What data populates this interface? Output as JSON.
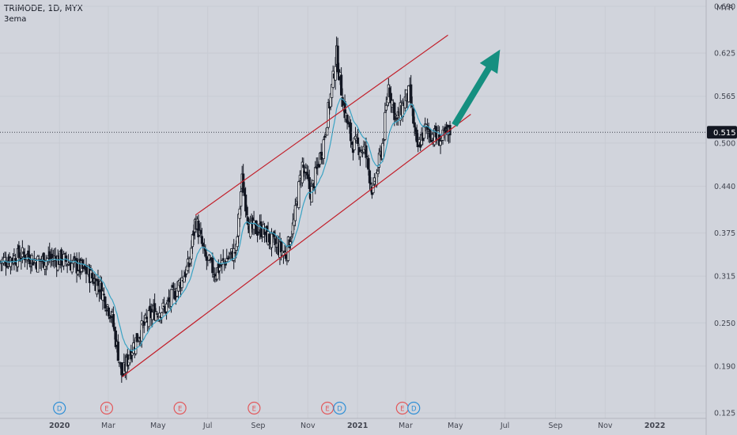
{
  "header": {
    "symbol_line": "TRIMODE, 1D, MYX",
    "indicator": "3ema"
  },
  "currency": "MYR",
  "last_price_label": "0.515",
  "colors": {
    "background": "#d1d4dc",
    "candle": "#131722",
    "ema": "#3aa3c4",
    "channel": "#c21f2a",
    "arrow": "#158f80",
    "dividend": "#2f8fd6",
    "earnings": "#e2585b",
    "price_tag": "#131722"
  },
  "events": [
    {
      "letter": "D",
      "kind": "dividend",
      "date": "2020-01-01"
    },
    {
      "letter": "E",
      "kind": "earnings",
      "date": "2020-02-28"
    },
    {
      "letter": "E",
      "kind": "earnings",
      "date": "2020-05-28"
    },
    {
      "letter": "E",
      "kind": "earnings",
      "date": "2020-08-27"
    },
    {
      "letter": "E",
      "kind": "earnings",
      "date": "2020-11-25"
    },
    {
      "letter": "D",
      "kind": "dividend",
      "date": "2020-12-10"
    },
    {
      "letter": "E",
      "kind": "earnings",
      "date": "2021-02-25"
    },
    {
      "letter": "D",
      "kind": "dividend",
      "date": "2021-03-11"
    }
  ],
  "chart_data": {
    "type": "candlestick",
    "symbol": "TRIMODE",
    "interval": "1D",
    "exchange": "MYX",
    "y_ticks": [
      "0.690",
      "0.625",
      "0.565",
      "0.500",
      "0.440",
      "0.375",
      "0.315",
      "0.250",
      "0.190",
      "0.125"
    ],
    "x_ticks": [
      "2020",
      "Mar",
      "May",
      "Jul",
      "Sep",
      "Nov",
      "2021",
      "Mar",
      "May",
      "Jul",
      "Sep",
      "Nov",
      "2022"
    ],
    "x_tick_dates": [
      "2020-01-01",
      "2020-03-01",
      "2020-05-01",
      "2020-07-01",
      "2020-09-01",
      "2020-11-01",
      "2021-01-01",
      "2021-03-01",
      "2021-05-01",
      "2021-07-01",
      "2021-09-01",
      "2021-11-01",
      "2022-01-01"
    ],
    "ylim": [
      0.125,
      0.69
    ],
    "xlim": [
      "2019-10-20",
      "2022-03-05"
    ],
    "last_price": 0.515,
    "ema_label": "3ema",
    "price_path": [
      [
        "2019-10-20",
        0.335
      ],
      [
        "2019-11-05",
        0.34
      ],
      [
        "2019-11-20",
        0.345
      ],
      [
        "2019-12-05",
        0.335
      ],
      [
        "2019-12-20",
        0.34
      ],
      [
        "2020-01-05",
        0.338
      ],
      [
        "2020-01-20",
        0.33
      ],
      [
        "2020-02-05",
        0.32
      ],
      [
        "2020-02-20",
        0.3
      ],
      [
        "2020-03-05",
        0.26
      ],
      [
        "2020-03-18",
        0.175
      ],
      [
        "2020-03-28",
        0.21
      ],
      [
        "2020-04-10",
        0.24
      ],
      [
        "2020-04-25",
        0.265
      ],
      [
        "2020-05-10",
        0.27
      ],
      [
        "2020-05-25",
        0.3
      ],
      [
        "2020-06-08",
        0.33
      ],
      [
        "2020-06-16",
        0.395
      ],
      [
        "2020-06-28",
        0.34
      ],
      [
        "2020-07-10",
        0.32
      ],
      [
        "2020-07-25",
        0.34
      ],
      [
        "2020-08-05",
        0.35
      ],
      [
        "2020-08-12",
        0.45
      ],
      [
        "2020-08-22",
        0.38
      ],
      [
        "2020-09-05",
        0.38
      ],
      [
        "2020-09-20",
        0.36
      ],
      [
        "2020-10-05",
        0.345
      ],
      [
        "2020-10-15",
        0.39
      ],
      [
        "2020-10-25",
        0.47
      ],
      [
        "2020-11-05",
        0.43
      ],
      [
        "2020-11-20",
        0.5
      ],
      [
        "2020-12-01",
        0.58
      ],
      [
        "2020-12-06",
        0.625
      ],
      [
        "2020-12-15",
        0.55
      ],
      [
        "2020-12-25",
        0.5
      ],
      [
        "2021-01-10",
        0.49
      ],
      [
        "2021-01-20",
        0.43
      ],
      [
        "2021-02-01",
        0.5
      ],
      [
        "2021-02-08",
        0.58
      ],
      [
        "2021-02-18",
        0.53
      ],
      [
        "2021-02-28",
        0.56
      ],
      [
        "2021-03-06",
        0.57
      ],
      [
        "2021-03-15",
        0.49
      ],
      [
        "2021-03-25",
        0.52
      ],
      [
        "2021-04-05",
        0.51
      ],
      [
        "2021-04-15",
        0.505
      ],
      [
        "2021-04-25",
        0.515
      ]
    ],
    "channel_upper": [
      [
        "2020-06-16",
        0.4
      ],
      [
        "2021-04-22",
        0.65
      ]
    ],
    "channel_lower": [
      [
        "2020-03-18",
        0.175
      ],
      [
        "2021-05-20",
        0.54
      ]
    ],
    "arrow": {
      "from": [
        "2021-04-30",
        0.525
      ],
      "to": [
        "2021-06-25",
        0.63
      ]
    }
  }
}
